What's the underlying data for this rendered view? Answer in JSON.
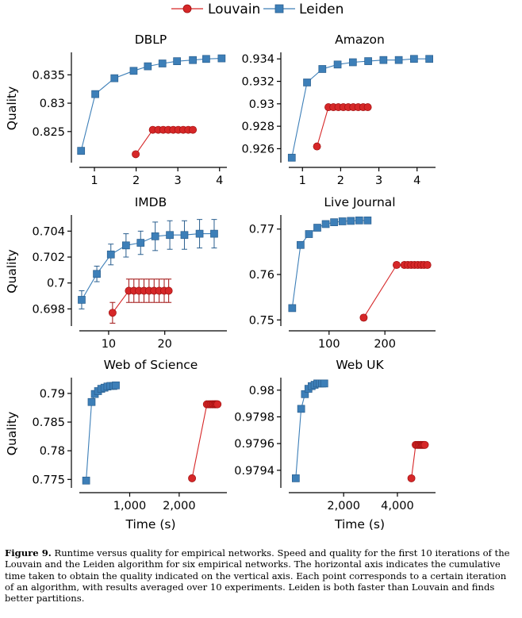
{
  "legend": [
    {
      "name": "Louvain",
      "color": "#d62728",
      "marker": "circle"
    },
    {
      "name": "Leiden",
      "color": "#3d7fb8",
      "marker": "square"
    }
  ],
  "caption": {
    "label": "Figure 9.",
    "text": "Runtime versus quality for empirical networks. Speed and quality for the first 10 iterations of the Louvain and the Leiden algorithm for six empirical networks. The horizontal axis indicates the cumulative time taken to obtain the quality indicated on the vertical axis. Each point corresponds to a certain iteration of an algorithm, with results averaged over 10 experiments. Leiden is both faster than Louvain and finds better partitions."
  },
  "chart_data": [
    {
      "type": "line",
      "title": "DBLP",
      "ylabel": "Quality",
      "xlabel": "",
      "xlim": [
        0.6,
        4.1
      ],
      "ylim": [
        0.8198,
        0.8384
      ],
      "xticks": [
        {
          "v": 1,
          "l": "1"
        },
        {
          "v": 2,
          "l": "2"
        },
        {
          "v": 3,
          "l": "3"
        },
        {
          "v": 4,
          "l": "4"
        }
      ],
      "yticks": [
        {
          "v": 0.825,
          "l": "0.825"
        },
        {
          "v": 0.83,
          "l": "0.83"
        },
        {
          "v": 0.835,
          "l": "0.835"
        }
      ],
      "series": [
        {
          "name": "Leiden",
          "x": [
            0.68,
            1.02,
            1.48,
            1.94,
            2.28,
            2.63,
            2.98,
            3.36,
            3.68,
            4.05
          ],
          "y": [
            0.8216,
            0.8316,
            0.8344,
            0.8357,
            0.8365,
            0.837,
            0.8374,
            0.8376,
            0.8378,
            0.8379
          ]
        },
        {
          "name": "Louvain",
          "x": [
            1.99,
            2.4,
            2.53,
            2.65,
            2.77,
            2.89,
            3.01,
            3.13,
            3.25,
            3.36
          ],
          "y": [
            0.821,
            0.8253,
            0.8253,
            0.8253,
            0.8253,
            0.8253,
            0.8253,
            0.8253,
            0.8253,
            0.8253
          ]
        }
      ]
    },
    {
      "type": "line",
      "title": "Amazon",
      "ylabel": "",
      "xlabel": "",
      "xlim": [
        0.6,
        4.4
      ],
      "ylim": [
        0.9249,
        0.9343
      ],
      "xticks": [
        {
          "v": 1,
          "l": "1"
        },
        {
          "v": 2,
          "l": "2"
        },
        {
          "v": 3,
          "l": "3"
        },
        {
          "v": 4,
          "l": "4"
        }
      ],
      "yticks": [
        {
          "v": 0.926,
          "l": "0.926"
        },
        {
          "v": 0.928,
          "l": "0.928"
        },
        {
          "v": 0.93,
          "l": "0.93"
        },
        {
          "v": 0.932,
          "l": "0.932"
        },
        {
          "v": 0.934,
          "l": "0.934"
        }
      ],
      "series": [
        {
          "name": "Leiden",
          "x": [
            0.72,
            1.12,
            1.52,
            1.92,
            2.32,
            2.72,
            3.12,
            3.52,
            3.92,
            4.32
          ],
          "y": [
            0.9252,
            0.9319,
            0.9331,
            0.9335,
            0.9337,
            0.9338,
            0.9339,
            0.9339,
            0.934,
            0.934
          ]
        },
        {
          "name": "Louvain",
          "x": [
            1.38,
            1.68,
            1.81,
            1.94,
            2.07,
            2.2,
            2.33,
            2.46,
            2.59,
            2.71
          ],
          "y": [
            0.9262,
            0.9297,
            0.9297,
            0.9297,
            0.9297,
            0.9297,
            0.9297,
            0.9297,
            0.9297,
            0.9297
          ]
        }
      ]
    },
    {
      "type": "line",
      "title": "IMDB",
      "ylabel": "Quality",
      "xlabel": "",
      "xlim": [
        4.5,
        30.5
      ],
      "ylim": [
        0.6968,
        0.705
      ],
      "xticks": [
        {
          "v": 10,
          "l": "10"
        },
        {
          "v": 20,
          "l": "20"
        }
      ],
      "yticks": [
        {
          "v": 0.698,
          "l": "0.698"
        },
        {
          "v": 0.7,
          "l": "0.7"
        },
        {
          "v": 0.702,
          "l": "0.702"
        },
        {
          "v": 0.704,
          "l": "0.704"
        }
      ],
      "series": [
        {
          "name": "Leiden",
          "x": [
            5.2,
            7.9,
            10.4,
            13.1,
            15.7,
            18.3,
            20.9,
            23.5,
            26.2,
            28.8
          ],
          "y": [
            0.6987,
            0.7007,
            0.7022,
            0.7029,
            0.7031,
            0.7036,
            0.7037,
            0.7037,
            0.7038,
            0.7038
          ],
          "err": [
            0.0007,
            0.0006,
            0.0008,
            0.0009,
            0.0009,
            0.0011,
            0.0011,
            0.0011,
            0.0011,
            0.0011
          ]
        },
        {
          "name": "Louvain",
          "x": [
            10.7,
            13.6,
            14.5,
            15.4,
            16.3,
            17.2,
            18.1,
            19.0,
            19.9,
            20.7
          ],
          "y": [
            0.6977,
            0.6994,
            0.6994,
            0.6994,
            0.6994,
            0.6994,
            0.6994,
            0.6994,
            0.6994,
            0.6994
          ],
          "err": [
            0.0008,
            0.0009,
            0.0009,
            0.0009,
            0.0009,
            0.0009,
            0.0009,
            0.0009,
            0.0009,
            0.0009
          ]
        }
      ]
    },
    {
      "type": "line",
      "title": "Live Journal",
      "ylabel": "",
      "xlabel": "",
      "xlim": [
        25,
        285
      ],
      "ylim": [
        0.749,
        0.7724
      ],
      "xticks": [
        {
          "v": 100,
          "l": "100"
        },
        {
          "v": 200,
          "l": "200"
        }
      ],
      "yticks": [
        {
          "v": 0.75,
          "l": "0.75"
        },
        {
          "v": 0.76,
          "l": "0.76"
        },
        {
          "v": 0.77,
          "l": "0.77"
        }
      ],
      "series": [
        {
          "name": "Leiden",
          "x": [
            34,
            49,
            64,
            79,
            94,
            109,
            124,
            139,
            154,
            169
          ],
          "y": [
            0.7526,
            0.7665,
            0.7689,
            0.7703,
            0.7711,
            0.7715,
            0.7717,
            0.7718,
            0.7719,
            0.7719
          ]
        },
        {
          "name": "Louvain",
          "x": [
            162,
            221,
            235,
            241,
            247,
            253,
            259,
            265,
            270,
            276
          ],
          "y": [
            0.7505,
            0.7621,
            0.7621,
            0.7621,
            0.7621,
            0.7621,
            0.7621,
            0.7621,
            0.7621,
            0.7621
          ],
          "err": [
            0.0006,
            0.0006,
            0.0006,
            0.0006,
            0.0006,
            0.0006,
            0.0006,
            0.0006,
            0.0006,
            0.0006
          ]
        }
      ]
    },
    {
      "type": "line",
      "title": "Web of Science",
      "ylabel": "Quality",
      "xlabel": "Time (s)",
      "xlim": [
        -50,
        2900
      ],
      "ylim": [
        0.7738,
        0.7922
      ],
      "xticks": [
        {
          "v": 1000,
          "l": "1,000"
        },
        {
          "v": 2000,
          "l": "2,000"
        }
      ],
      "yticks": [
        {
          "v": 0.775,
          "l": "0.775"
        },
        {
          "v": 0.78,
          "l": "0.78"
        },
        {
          "v": 0.785,
          "l": "0.785"
        },
        {
          "v": 0.79,
          "l": "0.79"
        }
      ],
      "series": [
        {
          "name": "Leiden",
          "x": [
            120,
            230,
            295,
            360,
            425,
            490,
            550,
            610,
            670,
            720
          ],
          "y": [
            0.7748,
            0.7885,
            0.7899,
            0.7904,
            0.7908,
            0.791,
            0.7912,
            0.7913,
            0.7913,
            0.7914
          ]
        },
        {
          "name": "Louvain",
          "x": [
            2260,
            2560,
            2600,
            2635,
            2665,
            2690,
            2715,
            2735,
            2755,
            2775
          ],
          "y": [
            0.7752,
            0.7881,
            0.7881,
            0.7881,
            0.7881,
            0.7881,
            0.7881,
            0.7881,
            0.7881,
            0.7881
          ],
          "err": [
            0.0003,
            0.0002,
            0.0002,
            0.0002,
            0.0002,
            0.0002,
            0.0002,
            0.0002,
            0.0002,
            0.0002
          ]
        }
      ]
    },
    {
      "type": "line",
      "title": "Web UK",
      "ylabel": "",
      "xlabel": "Time (s)",
      "xlim": [
        -100,
        5300
      ],
      "ylim": [
        0.97928,
        0.98007
      ],
      "xticks": [
        {
          "v": 2000,
          "l": "2,000"
        },
        {
          "v": 4000,
          "l": "4,000"
        }
      ],
      "yticks": [
        {
          "v": 0.9794,
          "l": "0.9794"
        },
        {
          "v": 0.9796,
          "l": "0.9796"
        },
        {
          "v": 0.9798,
          "l": "0.9798"
        },
        {
          "v": 0.98,
          "l": "0.98"
        }
      ],
      "series": [
        {
          "name": "Leiden",
          "x": [
            220,
            420,
            560,
            690,
            810,
            920,
            1020,
            1110,
            1200,
            1280
          ],
          "y": [
            0.97934,
            0.97986,
            0.97997,
            0.98001,
            0.98003,
            0.98004,
            0.98005,
            0.98005,
            0.98005,
            0.98005
          ]
        },
        {
          "name": "Louvain",
          "x": [
            4520,
            4680,
            4740,
            4790,
            4835,
            4875,
            4915,
            4950,
            4985,
            5020
          ],
          "y": [
            0.97934,
            0.97959,
            0.97959,
            0.97959,
            0.97959,
            0.97959,
            0.97959,
            0.97959,
            0.97959,
            0.97959
          ],
          "err": [
            1.2e-05,
            1e-05,
            1e-05,
            1e-05,
            1e-05,
            1e-05,
            1e-05,
            1e-05,
            1e-05,
            1e-05
          ]
        }
      ]
    }
  ]
}
